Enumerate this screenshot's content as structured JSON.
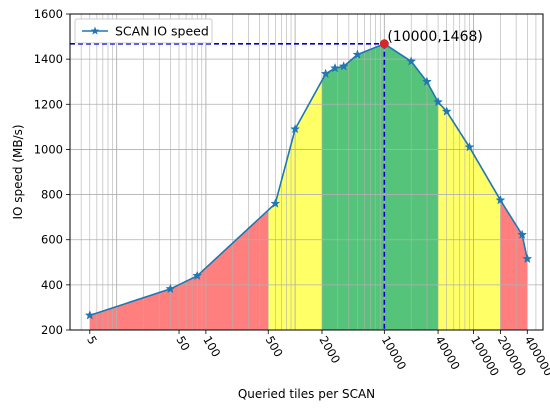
{
  "chart_data": {
    "type": "line",
    "xlabel": "Queried tiles per SCAN",
    "ylabel": "IO speed (MB/s)",
    "xscale": "log",
    "ylim": [
      200,
      1600
    ],
    "yticks": [
      200,
      400,
      600,
      800,
      1000,
      1200,
      1400,
      1600
    ],
    "xticks": [
      5,
      50,
      100,
      500,
      2000,
      10000,
      40000,
      100000,
      200000,
      400000
    ],
    "xtick_labels": [
      "5",
      "50",
      "100",
      "500",
      "2000",
      "10000",
      "40000",
      "100000",
      "200000",
      "400000"
    ],
    "grid": true,
    "legend": "top-left",
    "series": [
      {
        "name": "SCAN IO speed",
        "color": "#1f77b4",
        "marker": "star",
        "x": [
          5,
          40,
          80,
          600,
          1000,
          2200,
          2800,
          3500,
          5000,
          10000,
          20000,
          30000,
          40000,
          50000,
          90000,
          200000,
          350000,
          400000
        ],
        "y": [
          265,
          382,
          440,
          760,
          1090,
          1335,
          1360,
          1368,
          1420,
          1468,
          1390,
          1300,
          1210,
          1168,
          1010,
          775,
          622,
          515
        ]
      }
    ],
    "fill_regions": [
      {
        "x_range": [
          5,
          500
        ],
        "color": "#ff7f7f"
      },
      {
        "x_range": [
          500,
          2000
        ],
        "color": "#ffff66"
      },
      {
        "x_range": [
          2000,
          40000
        ],
        "color": "#55c47a"
      },
      {
        "x_range": [
          40000,
          200000
        ],
        "color": "#ffff66"
      },
      {
        "x_range": [
          200000,
          400000
        ],
        "color": "#ff7f7f"
      }
    ],
    "annotation": {
      "text": "(10000,1468)",
      "point": [
        10000,
        1468
      ],
      "point_color": "#d62728",
      "guide_color": "#0000cc"
    }
  }
}
